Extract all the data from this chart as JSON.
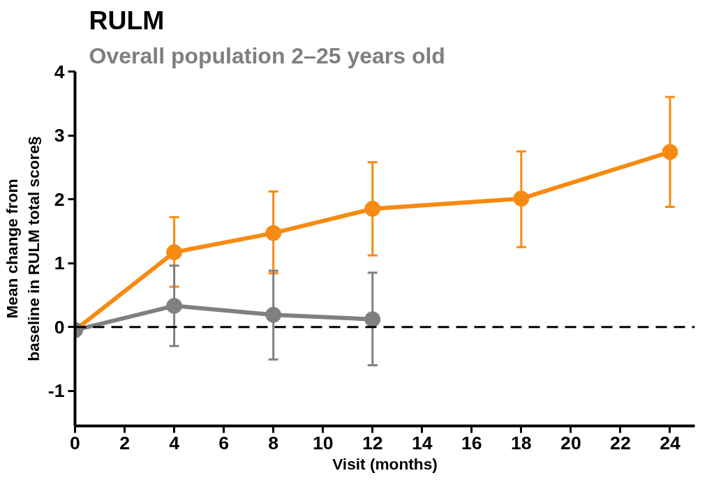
{
  "chart_data": {
    "type": "line",
    "title": "RULM",
    "subtitle": "Overall population 2–25 years old",
    "xlabel": "Visit (months)",
    "ylabel": "Mean change from\nbaseline in RULM total score§",
    "x": [
      0,
      4,
      8,
      12,
      18,
      24
    ],
    "series": [
      {
        "color": "#f78a10",
        "values": [
          -0.05,
          1.17,
          1.47,
          1.85,
          2.01,
          2.74
        ],
        "errors": [
          null,
          [
            0.63,
            1.72
          ],
          [
            0.84,
            2.12
          ],
          [
            1.12,
            2.58
          ],
          [
            1.25,
            2.75
          ],
          [
            1.88,
            3.6
          ]
        ]
      },
      {
        "color": "#808080",
        "x": [
          0,
          4,
          8,
          12
        ],
        "values": [
          -0.05,
          0.33,
          0.19,
          0.12
        ],
        "errors": [
          null,
          [
            -0.3,
            0.96
          ],
          [
            -0.51,
            0.88
          ],
          [
            -0.6,
            0.85
          ]
        ]
      }
    ],
    "xlim": [
      0,
      25
    ],
    "xticks": [
      0,
      2,
      4,
      6,
      8,
      10,
      12,
      14,
      16,
      18,
      20,
      22,
      24
    ],
    "ylim": [
      -1.55,
      4
    ],
    "yticks": [
      -1,
      0,
      1,
      2,
      3,
      4
    ],
    "ref_lines": [
      {
        "axis": "y",
        "value": 0,
        "color": "#000000",
        "line_style": "dashed"
      }
    ],
    "grid": false,
    "marker": "circle",
    "line_style": "solid"
  }
}
